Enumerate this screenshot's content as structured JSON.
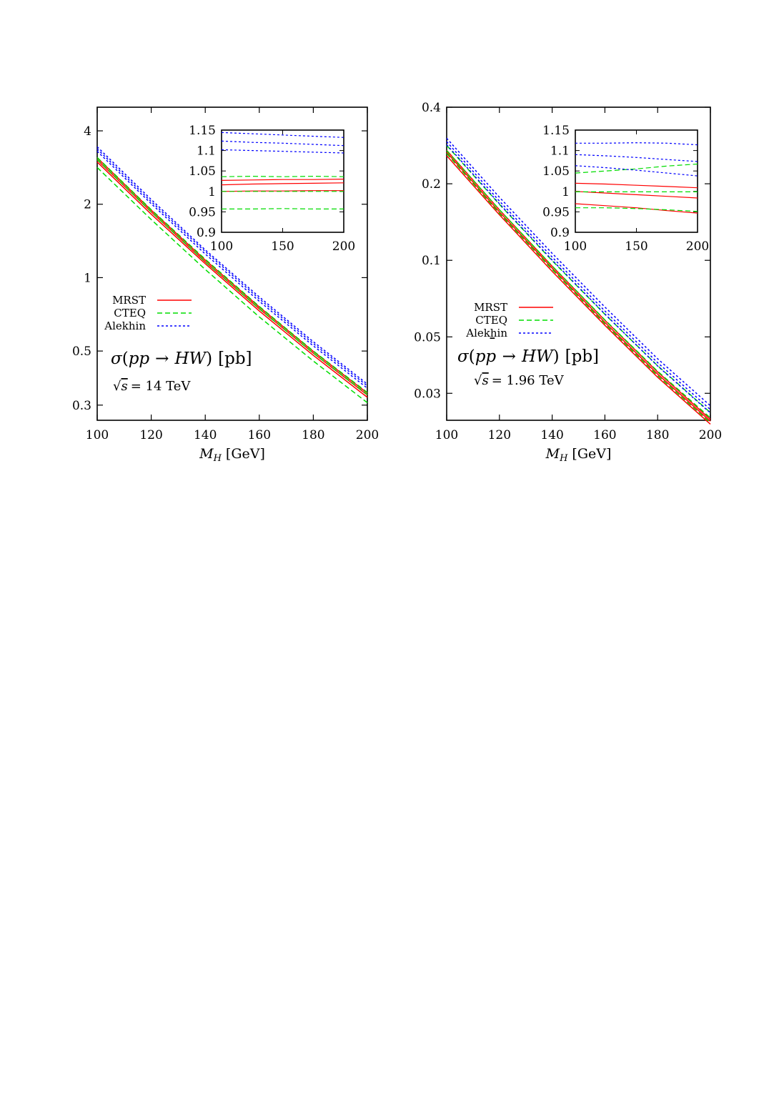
{
  "chart_data": [
    {
      "type": "line",
      "x_scale": "linear",
      "y_scale": "log",
      "xlim": [
        100,
        200
      ],
      "ylim": [
        0.26,
        5.0
      ],
      "x_ticks": [
        "100",
        "120",
        "140",
        "160",
        "180",
        "200"
      ],
      "y_ticks": [
        {
          "value": 0.3,
          "label": "0.3"
        },
        {
          "value": 0.5,
          "label": "0.5"
        },
        {
          "value": 1,
          "label": "1"
        },
        {
          "value": 2,
          "label": "2"
        },
        {
          "value": 4,
          "label": "4"
        }
      ],
      "xlabel_main": "M",
      "xlabel_sub": "H",
      "xlabel_unit": "[GeV]",
      "process": {
        "sigma": "σ",
        "open": "(",
        "p1": "p",
        "p2": "p",
        "bar": "",
        "arrow": "→",
        "final": "HW",
        "close": ")",
        "unit": "[pb]"
      },
      "energy": {
        "sqrt": "√",
        "s": "s",
        "eq": "= 14 TeV"
      },
      "legend": [
        {
          "name": "MRST",
          "color": "#ff0000",
          "dash": "solid"
        },
        {
          "name": "CTEQ",
          "color": "#00dd00",
          "dash": "dashed"
        },
        {
          "name": "Alekhin",
          "color": "#0000ff",
          "dash": "dotted"
        }
      ],
      "x": [
        100,
        120,
        140,
        160,
        180,
        200
      ],
      "series": [
        {
          "group": "MRST",
          "values": [
            2.98,
            1.82,
            1.14,
            0.73,
            0.48,
            0.323
          ]
        },
        {
          "group": "MRST",
          "values": [
            3.04,
            1.86,
            1.16,
            0.745,
            0.49,
            0.33
          ]
        },
        {
          "group": "MRST",
          "values": [
            3.1,
            1.89,
            1.18,
            0.758,
            0.498,
            0.336
          ]
        },
        {
          "group": "CTEQ",
          "values": [
            2.83,
            1.73,
            1.08,
            0.69,
            0.455,
            0.307
          ]
        },
        {
          "group": "CTEQ",
          "values": [
            3.05,
            1.86,
            1.16,
            0.745,
            0.49,
            0.331
          ]
        },
        {
          "group": "CTEQ",
          "values": [
            3.11,
            1.9,
            1.19,
            0.762,
            0.5,
            0.338
          ]
        },
        {
          "group": "Alekhin",
          "values": [
            3.3,
            2.01,
            1.25,
            0.8,
            0.525,
            0.352
          ]
        },
        {
          "group": "Alekhin",
          "values": [
            3.37,
            2.05,
            1.28,
            0.818,
            0.536,
            0.36
          ]
        },
        {
          "group": "Alekhin",
          "values": [
            3.44,
            2.09,
            1.3,
            0.833,
            0.546,
            0.366
          ]
        }
      ],
      "inset": {
        "xlim": [
          100,
          200
        ],
        "ylim": [
          0.9,
          1.15
        ],
        "x_ticks": [
          "100",
          "150",
          "200"
        ],
        "y_ticks": [
          "0.9",
          "0.95",
          "1",
          "1.05",
          "1.1",
          "1.15"
        ],
        "x": [
          100,
          125,
          150,
          175,
          200
        ],
        "series": [
          {
            "group": "MRST",
            "values": [
              1.0,
              1.001,
              1.001,
              1.002,
              1.002
            ]
          },
          {
            "group": "MRST",
            "values": [
              1.016,
              1.018,
              1.019,
              1.02,
              1.021
            ]
          },
          {
            "group": "MRST",
            "values": [
              1.027,
              1.028,
              1.029,
              1.029,
              1.03
            ]
          },
          {
            "group": "CTEQ",
            "values": [
              0.957,
              0.957,
              0.958,
              0.957,
              0.957
            ]
          },
          {
            "group": "CTEQ",
            "values": [
              1.0,
              1.0,
              1.0,
              1.0,
              1.0
            ]
          },
          {
            "group": "CTEQ",
            "values": [
              1.036,
              1.037,
              1.036,
              1.037,
              1.036
            ]
          },
          {
            "group": "Alekhin",
            "values": [
              1.102,
              1.1,
              1.098,
              1.096,
              1.094
            ]
          },
          {
            "group": "Alekhin",
            "values": [
              1.123,
              1.12,
              1.118,
              1.115,
              1.112
            ]
          },
          {
            "group": "Alekhin",
            "values": [
              1.144,
              1.141,
              1.138,
              1.135,
              1.132
            ]
          }
        ]
      }
    },
    {
      "type": "line",
      "x_scale": "linear",
      "y_scale": "log",
      "xlim": [
        100,
        200
      ],
      "ylim": [
        0.0235,
        0.4
      ],
      "x_ticks": [
        "100",
        "120",
        "140",
        "160",
        "180",
        "200"
      ],
      "y_ticks": [
        {
          "value": 0.03,
          "label": "0.03"
        },
        {
          "value": 0.05,
          "label": "0.05"
        },
        {
          "value": 0.1,
          "label": "0.1"
        },
        {
          "value": 0.2,
          "label": "0.2"
        },
        {
          "value": 0.4,
          "label": "0.4"
        }
      ],
      "xlabel_main": "M",
      "xlabel_sub": "H",
      "xlabel_unit": "[GeV]",
      "process": {
        "sigma": "σ",
        "open": "(",
        "p1": "p",
        "p2": "p",
        "bar": "¯",
        "arrow": "→",
        "final": "HW",
        "close": ")",
        "unit": "[pb]"
      },
      "energy": {
        "sqrt": "√",
        "s": "s",
        "eq": "= 1.96 TeV"
      },
      "legend": [
        {
          "name": "MRST",
          "color": "#ff0000",
          "dash": "solid"
        },
        {
          "name": "CTEQ",
          "color": "#00dd00",
          "dash": "dashed"
        },
        {
          "name": "Alekhin",
          "color": "#0000ff",
          "dash": "dotted"
        }
      ],
      "x": [
        100,
        120,
        140,
        160,
        180,
        200
      ],
      "series": [
        {
          "group": "MRST",
          "values": [
            0.258,
            0.151,
            0.0905,
            0.0555,
            0.0347,
            0.0227
          ]
        },
        {
          "group": "MRST",
          "values": [
            0.266,
            0.155,
            0.0932,
            0.057,
            0.0357,
            0.0233
          ]
        },
        {
          "group": "MRST",
          "values": [
            0.271,
            0.158,
            0.0948,
            0.0581,
            0.0364,
            0.0237
          ]
        },
        {
          "group": "CTEQ",
          "values": [
            0.263,
            0.153,
            0.0921,
            0.0563,
            0.0352,
            0.023
          ]
        },
        {
          "group": "CTEQ",
          "values": [
            0.27,
            0.158,
            0.095,
            0.0583,
            0.0366,
            0.024
          ]
        },
        {
          "group": "CTEQ",
          "values": [
            0.283,
            0.166,
            0.0997,
            0.0613,
            0.0385,
            0.0252
          ]
        },
        {
          "group": "Alekhin",
          "values": [
            0.285,
            0.167,
            0.1003,
            0.0615,
            0.0384,
            0.0251
          ]
        },
        {
          "group": "Alekhin",
          "values": [
            0.293,
            0.171,
            0.103,
            0.0632,
            0.0396,
            0.0259
          ]
        },
        {
          "group": "Alekhin",
          "values": [
            0.302,
            0.177,
            0.1065,
            0.0655,
            0.041,
            0.0268
          ]
        }
      ],
      "inset": {
        "xlim": [
          100,
          200
        ],
        "ylim": [
          0.9,
          1.15
        ],
        "x_ticks": [
          "100",
          "150",
          "200"
        ],
        "y_ticks": [
          "0.9",
          "0.95",
          "1",
          "1.05",
          "1.1",
          "1.15"
        ],
        "x": [
          100,
          125,
          150,
          175,
          200
        ],
        "series": [
          {
            "group": "MRST",
            "values": [
              0.97,
              0.965,
              0.96,
              0.953,
              0.947
            ]
          },
          {
            "group": "MRST",
            "values": [
              1.0,
              0.996,
              0.992,
              0.988,
              0.984
            ]
          },
          {
            "group": "MRST",
            "values": [
              1.02,
              1.018,
              1.015,
              1.012,
              1.009
            ]
          },
          {
            "group": "CTEQ",
            "values": [
              0.96,
              0.96,
              0.958,
              0.955,
              0.951
            ]
          },
          {
            "group": "CTEQ",
            "values": [
              0.999,
              0.999,
              0.999,
              0.999,
              0.999
            ]
          },
          {
            "group": "CTEQ",
            "values": [
              1.045,
              1.05,
              1.055,
              1.062,
              1.067
            ]
          },
          {
            "group": "Alekhin",
            "values": [
              1.063,
              1.058,
              1.052,
              1.045,
              1.038
            ]
          },
          {
            "group": "Alekhin",
            "values": [
              1.09,
              1.087,
              1.083,
              1.078,
              1.073
            ]
          },
          {
            "group": "Alekhin",
            "values": [
              1.118,
              1.118,
              1.119,
              1.118,
              1.114
            ]
          }
        ]
      }
    }
  ]
}
